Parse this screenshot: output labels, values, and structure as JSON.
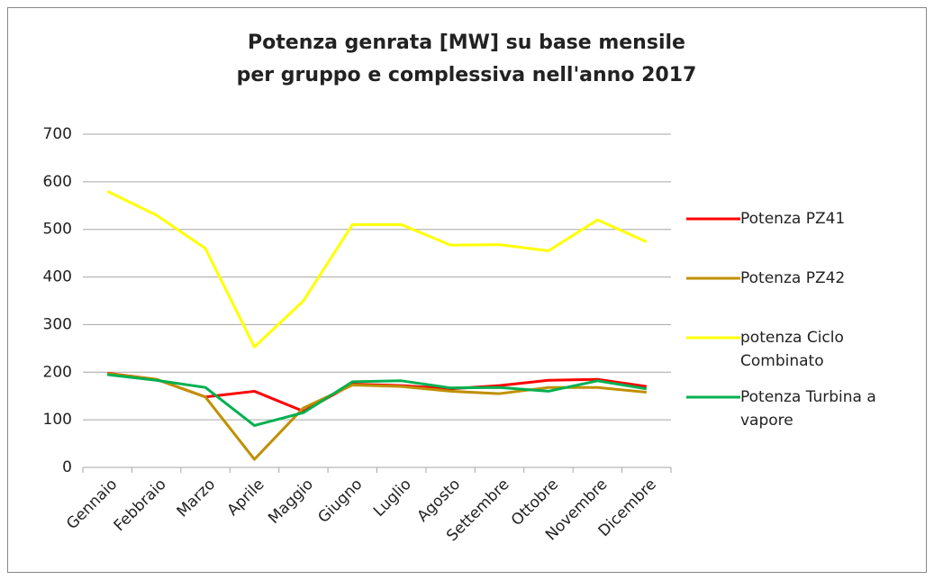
{
  "chart_data": {
    "type": "line",
    "title": "Potenza genrata [MW] su base mensile\nper gruppo e complessiva nell'anno 2017",
    "categories": [
      "Gennaio",
      "Febbraio",
      "Marzo",
      "Aprile",
      "Maggio",
      "Giugno",
      "Luglio",
      "Agosto",
      "Settembre",
      "Ottobre",
      "Novembre",
      "Dicembre"
    ],
    "series": [
      {
        "name": "Potenza PZ41",
        "color": "#ff0000",
        "values": [
          198,
          185,
          148,
          160,
          118,
          175,
          172,
          165,
          172,
          183,
          185,
          170
        ]
      },
      {
        "name": "Potenza PZ42",
        "color": "#bf9000",
        "values": [
          197,
          185,
          148,
          17,
          125,
          173,
          170,
          160,
          155,
          168,
          168,
          158
        ]
      },
      {
        "name": "potenza Ciclo Combinato",
        "color": "#ffff00",
        "values": [
          580,
          530,
          460,
          253,
          350,
          510,
          510,
          467,
          468,
          455,
          520,
          474
        ]
      },
      {
        "name": "Potenza Turbina a vapore",
        "color": "#00b050",
        "values": [
          195,
          183,
          168,
          88,
          115,
          180,
          182,
          167,
          168,
          160,
          182,
          165
        ]
      }
    ],
    "ylim": [
      0,
      700
    ],
    "yticks": [
      0,
      100,
      200,
      300,
      400,
      500,
      600,
      700
    ],
    "grid": true,
    "legend": "right"
  }
}
